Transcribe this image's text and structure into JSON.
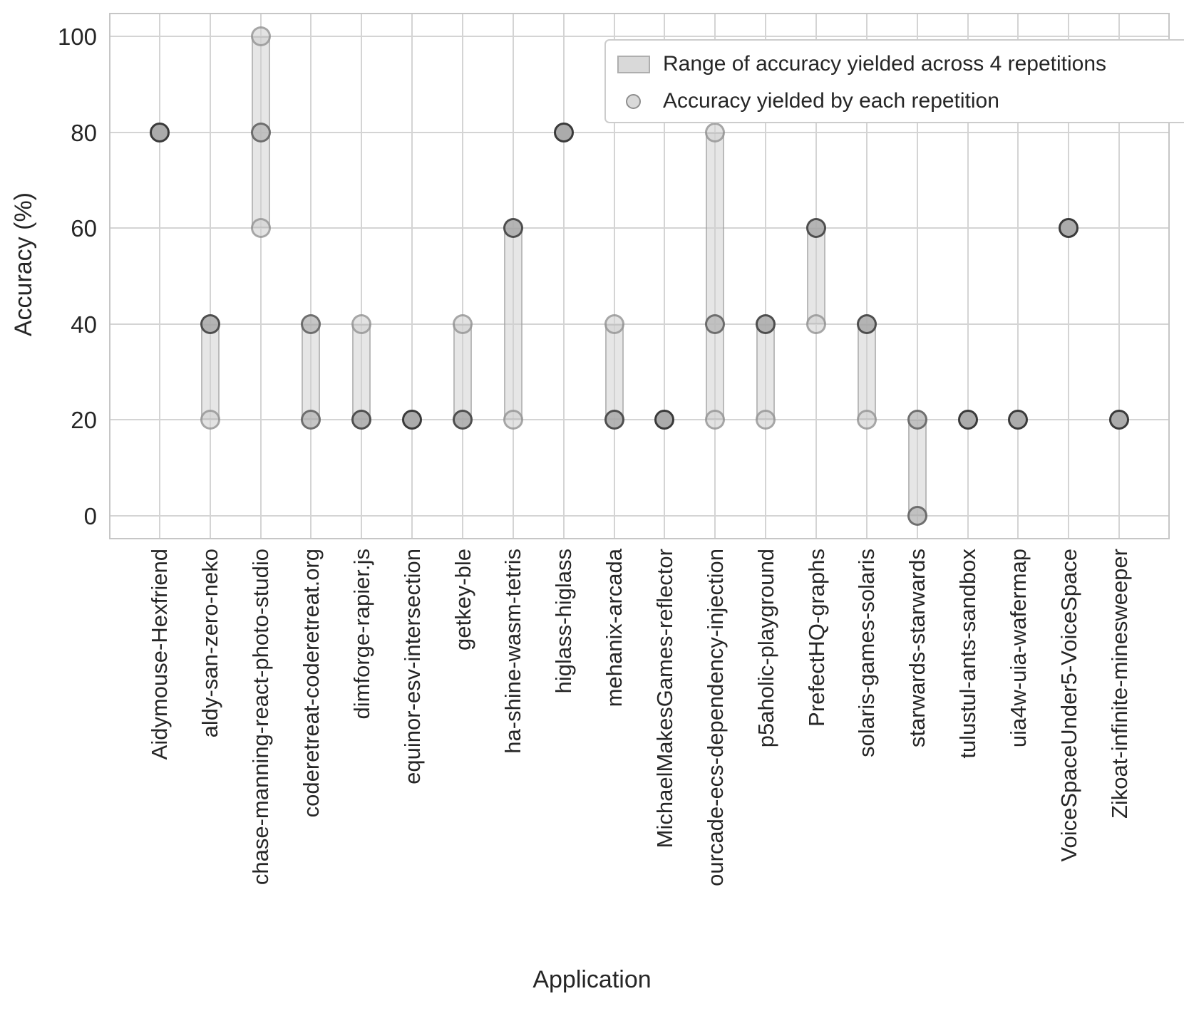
{
  "chart_data": {
    "type": "scatter",
    "title": "",
    "xlabel": "Application",
    "ylabel": "Accuracy (%)",
    "ylim": [
      -5,
      105
    ],
    "yticks": [
      0,
      20,
      40,
      60,
      80,
      100
    ],
    "grid": "both",
    "n_repetitions": 4,
    "legend": {
      "position": "upper right",
      "items": [
        {
          "marker": "range-bar-swatch",
          "label": "Range of accuracy yielded across 4 repetitions"
        },
        {
          "marker": "repetition-dot-swatch",
          "label": "Accuracy yielded by each repetition"
        }
      ]
    },
    "series": [
      {
        "application": "Aidymouse-Hexfriend",
        "range": [
          80,
          80
        ],
        "repetitions": [
          {
            "value": 80,
            "count": 4
          }
        ]
      },
      {
        "application": "aldy-san-zero-neko",
        "range": [
          20,
          40
        ],
        "repetitions": [
          {
            "value": 40,
            "count": 3
          },
          {
            "value": 20,
            "count": 1
          }
        ]
      },
      {
        "application": "chase-manning-react-photo-studio",
        "range": [
          60,
          100
        ],
        "repetitions": [
          {
            "value": 100,
            "count": 1
          },
          {
            "value": 80,
            "count": 2
          },
          {
            "value": 60,
            "count": 1
          }
        ]
      },
      {
        "application": "coderetreat-coderetreat.org",
        "range": [
          20,
          40
        ],
        "repetitions": [
          {
            "value": 40,
            "count": 2
          },
          {
            "value": 20,
            "count": 2
          }
        ]
      },
      {
        "application": "dimforge-rapier.js",
        "range": [
          20,
          40
        ],
        "repetitions": [
          {
            "value": 40,
            "count": 1
          },
          {
            "value": 20,
            "count": 3
          }
        ]
      },
      {
        "application": "equinor-esv-intersection",
        "range": [
          20,
          20
        ],
        "repetitions": [
          {
            "value": 20,
            "count": 4
          }
        ]
      },
      {
        "application": "getkey-ble",
        "range": [
          20,
          40
        ],
        "repetitions": [
          {
            "value": 40,
            "count": 1
          },
          {
            "value": 20,
            "count": 3
          }
        ]
      },
      {
        "application": "ha-shine-wasm-tetris",
        "range": [
          20,
          60
        ],
        "repetitions": [
          {
            "value": 60,
            "count": 3
          },
          {
            "value": 20,
            "count": 1
          }
        ]
      },
      {
        "application": "higlass-higlass",
        "range": [
          80,
          80
        ],
        "repetitions": [
          {
            "value": 80,
            "count": 4
          }
        ]
      },
      {
        "application": "mehanix-arcada",
        "range": [
          20,
          40
        ],
        "repetitions": [
          {
            "value": 40,
            "count": 1
          },
          {
            "value": 20,
            "count": 3
          }
        ]
      },
      {
        "application": "MichaelMakesGames-reflector",
        "range": [
          20,
          20
        ],
        "repetitions": [
          {
            "value": 20,
            "count": 4
          }
        ]
      },
      {
        "application": "ourcade-ecs-dependency-injection",
        "range": [
          20,
          80
        ],
        "repetitions": [
          {
            "value": 80,
            "count": 1
          },
          {
            "value": 40,
            "count": 2
          },
          {
            "value": 20,
            "count": 1
          }
        ]
      },
      {
        "application": "p5aholic-playground",
        "range": [
          20,
          40
        ],
        "repetitions": [
          {
            "value": 40,
            "count": 3
          },
          {
            "value": 20,
            "count": 1
          }
        ]
      },
      {
        "application": "PrefectHQ-graphs",
        "range": [
          40,
          60
        ],
        "repetitions": [
          {
            "value": 60,
            "count": 3
          },
          {
            "value": 40,
            "count": 1
          }
        ]
      },
      {
        "application": "solaris-games-solaris",
        "range": [
          20,
          40
        ],
        "repetitions": [
          {
            "value": 40,
            "count": 3
          },
          {
            "value": 20,
            "count": 1
          }
        ]
      },
      {
        "application": "starwards-starwards",
        "range": [
          0,
          20
        ],
        "repetitions": [
          {
            "value": 20,
            "count": 2
          },
          {
            "value": 0,
            "count": 2
          }
        ]
      },
      {
        "application": "tulustul-ants-sandbox",
        "range": [
          20,
          20
        ],
        "repetitions": [
          {
            "value": 20,
            "count": 4
          }
        ]
      },
      {
        "application": "uia4w-uia-wafermap",
        "range": [
          20,
          20
        ],
        "repetitions": [
          {
            "value": 20,
            "count": 4
          }
        ]
      },
      {
        "application": "VoiceSpaceUnder5-VoiceSpace",
        "range": [
          60,
          60
        ],
        "repetitions": [
          {
            "value": 60,
            "count": 4
          }
        ]
      },
      {
        "application": "Zikoat-infinite-minesweeper",
        "range": [
          20,
          20
        ],
        "repetitions": [
          {
            "value": 20,
            "count": 4
          }
        ]
      }
    ]
  },
  "colors": {
    "background": "#ffffff",
    "grid": "#d4d4d4",
    "spine": "#c6c6c6",
    "text": "#262626",
    "range_bar_fill": "rgba(205,205,205,0.5)",
    "range_bar_edge": "rgba(150,150,150,0.55)",
    "dot_overlap_levels": {
      "1": {
        "fill": "rgba(208,208,208,0.6)",
        "edge": "rgba(125,125,125,0.6)"
      },
      "2": {
        "fill": "rgba(182,182,182,0.78)",
        "edge": "rgba(92,92,92,0.82)"
      },
      "3": {
        "fill": "rgba(172,172,172,0.9)",
        "edge": "rgba(68,68,68,0.9)"
      },
      "4": {
        "fill": "#ababab",
        "edge": "#3a3a3a"
      }
    }
  }
}
